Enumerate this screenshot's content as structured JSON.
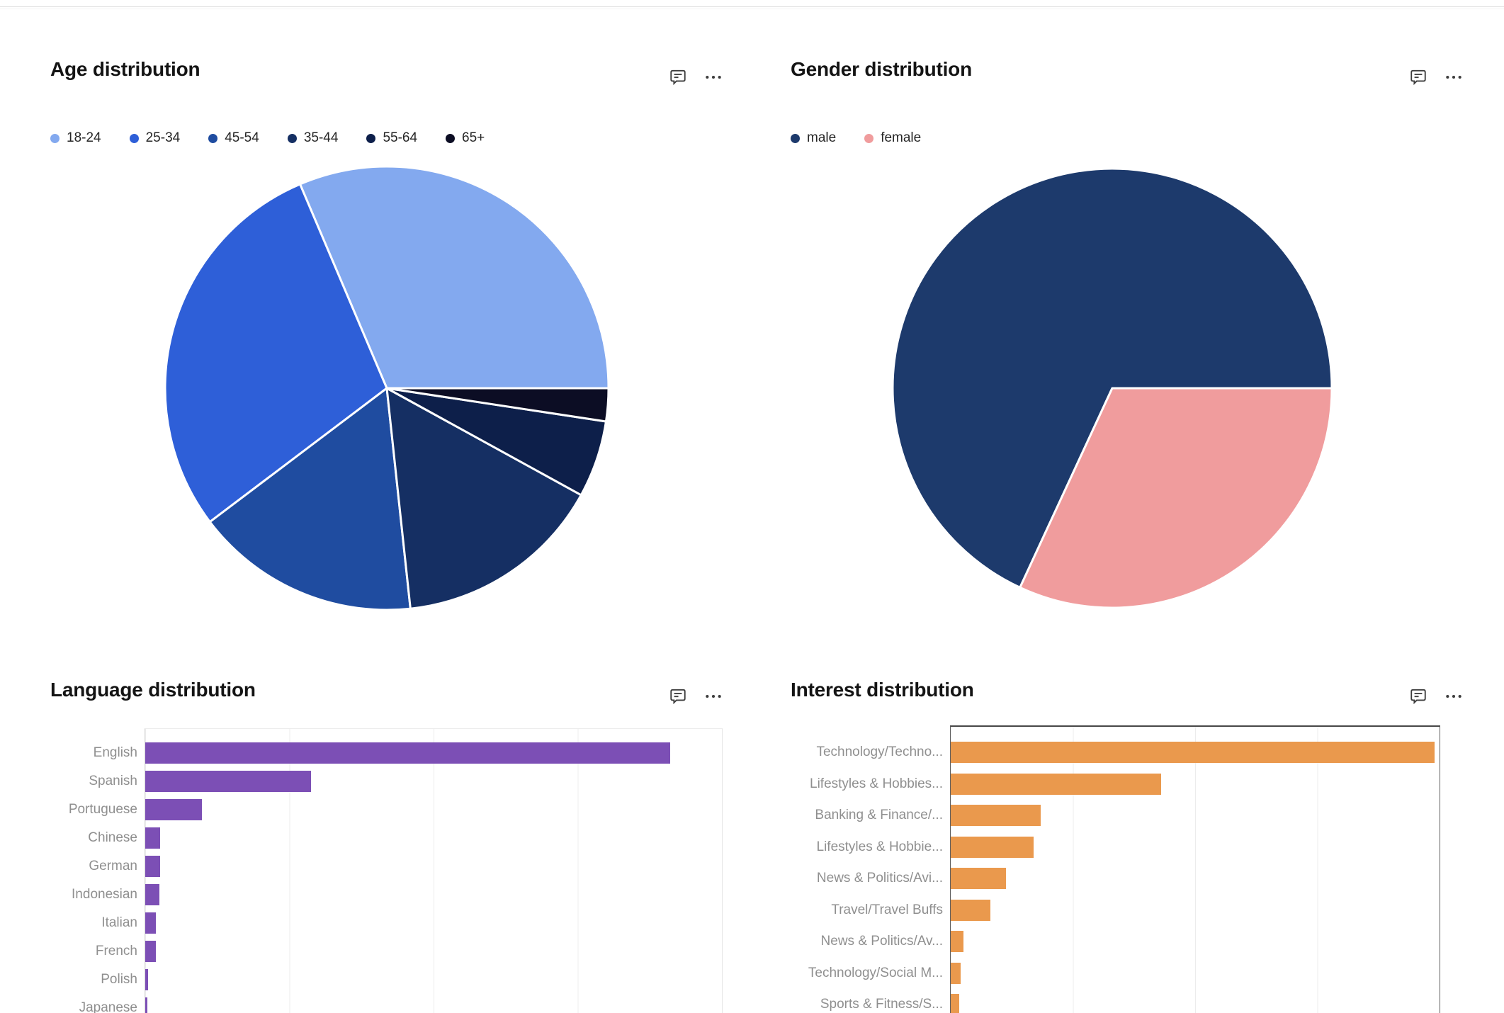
{
  "page": {
    "background": "#ffffff",
    "top_divider_color": "#e0e0e0"
  },
  "panels": [
    {
      "title": "Age distribution",
      "icons": [
        "comment-icon",
        "more-options-icon"
      ]
    },
    {
      "title": "Gender distribution",
      "icons": [
        "comment-icon",
        "more-options-icon"
      ]
    },
    {
      "title": "Language distribution",
      "icons": [
        "comment-icon",
        "more-options-icon"
      ]
    },
    {
      "title": "Interest distribution",
      "icons": [
        "comment-icon",
        "more-options-icon"
      ]
    }
  ],
  "chart_data": [
    {
      "type": "pie",
      "title": "Age distribution",
      "legend_position": "top-left",
      "direction": "counterclockwise",
      "start_angle_deg": 0,
      "slice_border_color": "#ffffff",
      "slices": [
        {
          "label": "18-24",
          "pct": 31.4,
          "color": "#83A9EF"
        },
        {
          "label": "25-34",
          "pct": 28.9,
          "color": "#2E5FD8"
        },
        {
          "label": "45-54",
          "pct": 16.4,
          "color": "#1F4CA0"
        },
        {
          "label": "35-44",
          "pct": 15.3,
          "color": "#152F63"
        },
        {
          "label": "55-64",
          "pct": 5.6,
          "color": "#0D1F4A"
        },
        {
          "label": "65+",
          "pct": 2.4,
          "color": "#0C0D24"
        }
      ]
    },
    {
      "type": "pie",
      "title": "Gender distribution",
      "legend_position": "top-left",
      "direction": "counterclockwise",
      "start_angle_deg": 0,
      "slice_border_color": "#ffffff",
      "slices": [
        {
          "label": "male",
          "pct": 68.1,
          "color": "#1D3A6C"
        },
        {
          "label": "female",
          "pct": 31.9,
          "color": "#F09C9D"
        }
      ]
    },
    {
      "type": "bar",
      "title": "Language distribution",
      "orientation": "horizontal",
      "bar_color": "#7C4FB5",
      "grid": true,
      "gridlines_pct_of_axis": [
        25,
        50,
        75,
        100
      ],
      "axis_numeric_labels_visible": false,
      "categories": [
        "English",
        "Spanish",
        "Portuguese",
        "Chinese",
        "German",
        "Indonesian",
        "Italian",
        "French",
        "Polish",
        "Japanese"
      ],
      "values_pct_of_axis": [
        91,
        28.7,
        9.8,
        2.6,
        2.6,
        2.4,
        1.8,
        1.8,
        0.5,
        0.4
      ]
    },
    {
      "type": "bar",
      "title": "Interest distribution",
      "orientation": "horizontal",
      "bar_color": "#EA994D",
      "grid": true,
      "plot_frame": "dark",
      "gridlines_pct_of_axis": [
        25,
        50,
        75,
        100
      ],
      "axis_numeric_labels_visible": false,
      "categories": [
        "Technology/Techno...",
        "Lifestyles & Hobbies...",
        "Banking & Finance/...",
        "Lifestyles & Hobbie...",
        "News & Politics/Avi...",
        "Travel/Travel Buffs",
        "News & Politics/Av...",
        "Technology/Social M...",
        "Sports & Fitness/S..."
      ],
      "values_pct_of_axis": [
        99,
        43,
        18.4,
        16.9,
        11.3,
        8.1,
        2.6,
        2.0,
        1.7
      ]
    }
  ]
}
